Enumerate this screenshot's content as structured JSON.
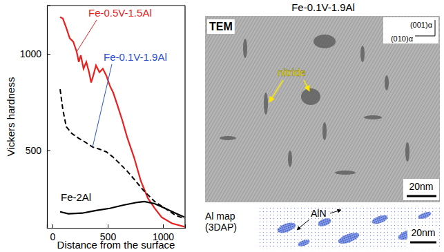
{
  "chart_data": {
    "type": "line",
    "y_label": "Vickers hardness",
    "x_label": "Distance from the surface",
    "xlim": [
      -50,
      1200
    ],
    "ylim": [
      100,
      1250
    ],
    "xticks": [
      0,
      500,
      1000
    ],
    "yticks": [
      500,
      1000
    ],
    "grid": false,
    "series": [
      {
        "name": "Fe-0.5V-1.5Al",
        "color": "#e8201e",
        "line_style": "solid",
        "x": [
          69,
          94,
          125,
          156,
          188,
          219,
          238,
          256,
          281,
          306,
          331,
          350,
          369,
          394,
          425,
          456,
          488,
          519,
          550,
          581,
          631,
          675,
          738,
          800,
          863,
          925,
          988,
          1081,
          1194
        ],
        "values": [
          1190,
          1183,
          1134,
          1081,
          1063,
          1011,
          958,
          993,
          923,
          958,
          905,
          852,
          887,
          940,
          905,
          923,
          887,
          835,
          799,
          746,
          658,
          570,
          465,
          342,
          254,
          201,
          155,
          123,
          106
        ]
      },
      {
        "name": "Fe-0.1V-1.9Al",
        "color": "#000000",
        "line_style": "dashed",
        "x": [
          69,
          94,
          125,
          175,
          238,
          300,
          363,
          425,
          488,
          550,
          613,
          675,
          738,
          831,
          925,
          1019,
          1113,
          1194
        ],
        "values": [
          817,
          711,
          623,
          588,
          563,
          542,
          518,
          507,
          493,
          465,
          430,
          394,
          352,
          289,
          236,
          201,
          165,
          148
        ]
      },
      {
        "name": "Fe-2Al",
        "color": "#000000",
        "line_style": "solid",
        "x": [
          69,
          144,
          269,
          394,
          519,
          644,
          769,
          831,
          925,
          1019,
          1113,
          1194
        ],
        "values": [
          183,
          173,
          176,
          190,
          201,
          218,
          232,
          236,
          225,
          201,
          176,
          155
        ]
      }
    ]
  },
  "panels": {
    "title": "Fe-0.1V-1.9Al",
    "tem": {
      "label": "TEM",
      "axis_vertical": "(001)α",
      "axis_horizontal": "(010)α",
      "annotation": "nitride",
      "scale_bar": "20nm"
    },
    "atom_map": {
      "label": "Al map (3DAP)",
      "annotation": "AlN",
      "scale_bar": "20nm"
    }
  }
}
